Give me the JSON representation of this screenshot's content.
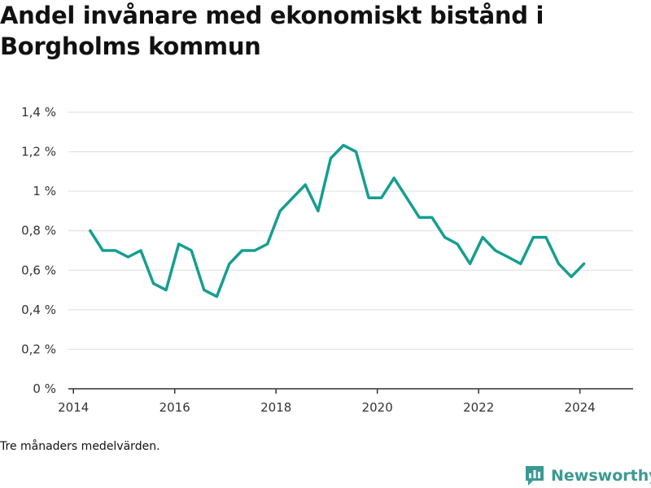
{
  "title": "Andel invånare med ekonomiskt bistånd i Borgholms kommun",
  "note": "Tre månaders medelvärden.",
  "brand": {
    "name": "Newsworthy",
    "icon": "newsworthy-logo-icon",
    "color": "#3a9a92"
  },
  "colors": {
    "line": "#159e91",
    "grid": "#dddddd",
    "axis": "#333333"
  },
  "chart_data": {
    "type": "line",
    "title": "Andel invånare med ekonomiskt bistånd i Borgholms kommun",
    "xlabel": "",
    "ylabel": "",
    "xlim": [
      2013.9,
      2025.05
    ],
    "ylim": [
      0,
      1.4
    ],
    "x_ticks": [
      2014,
      2016,
      2018,
      2020,
      2022,
      2024
    ],
    "x_tick_labels": [
      "2014",
      "2016",
      "2018",
      "2020",
      "2022",
      "2024"
    ],
    "y_ticks": [
      0,
      0.2,
      0.4,
      0.6,
      0.8,
      1.0,
      1.2,
      1.4
    ],
    "y_tick_labels": [
      "0 %",
      "0,2 %",
      "0,4 %",
      "0,6 %",
      "0,8 %",
      "1 %",
      "1,2 %",
      "1,4 %"
    ],
    "grid": true,
    "series": [
      {
        "x": [
          2014.33,
          2014.58,
          2014.83,
          2015.08,
          2015.33,
          2015.58,
          2015.83,
          2016.08,
          2016.33,
          2016.58,
          2016.83,
          2017.08,
          2017.33,
          2017.58,
          2017.83,
          2018.08,
          2018.33,
          2018.58,
          2018.83,
          2019.08,
          2019.33,
          2019.58,
          2019.83,
          2020.08,
          2020.33,
          2020.58,
          2020.83,
          2021.08,
          2021.33,
          2021.58,
          2021.83,
          2022.08,
          2022.33,
          2022.58,
          2022.83,
          2023.08,
          2023.33,
          2023.58,
          2023.83,
          2024.08
        ],
        "y": [
          0.8,
          0.7,
          0.7,
          0.667,
          0.7,
          0.533,
          0.5,
          0.733,
          0.7,
          0.5,
          0.467,
          0.633,
          0.7,
          0.7,
          0.733,
          0.9,
          0.967,
          1.033,
          0.9,
          1.167,
          1.233,
          1.2,
          0.967,
          0.967,
          1.067,
          0.967,
          0.867,
          0.867,
          0.767,
          0.733,
          0.633,
          0.767,
          0.7,
          0.667,
          0.633,
          0.767,
          0.767,
          0.633,
          0.567,
          0.633
        ]
      }
    ]
  }
}
